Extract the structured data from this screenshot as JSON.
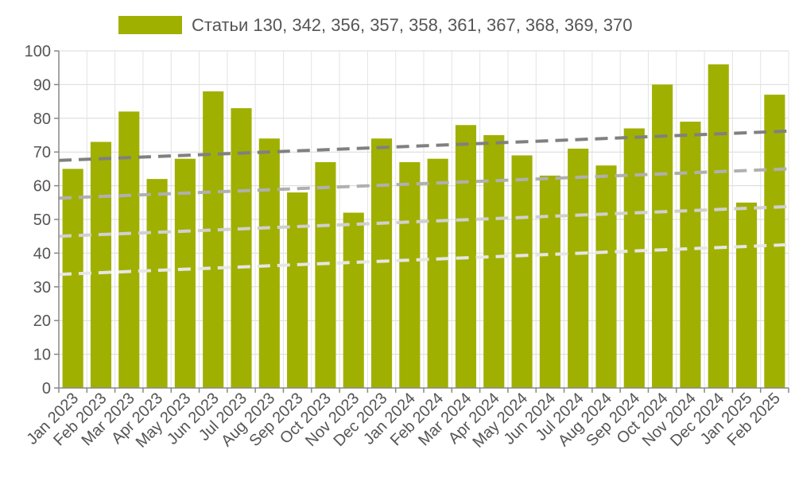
{
  "chart_data": {
    "type": "bar",
    "categories": [
      "Jan 2023",
      "Feb 2023",
      "Mar 2023",
      "Apr 2023",
      "May 2023",
      "Jun 2023",
      "Jul 2023",
      "Aug 2023",
      "Sep 2023",
      "Oct 2023",
      "Nov 2023",
      "Dec 2023",
      "Jan 2024",
      "Feb 2024",
      "Mar 2024",
      "Apr 2024",
      "May 2024",
      "Jun 2024",
      "Jul 2024",
      "Aug 2024",
      "Sep 2024",
      "Oct 2024",
      "Nov 2024",
      "Dec 2024",
      "Jan 2025",
      "Feb 2025"
    ],
    "series": [
      {
        "name": "Статьи 130, 342, 356, 357, 358, 361, 367, 368, 369, 370",
        "color": "#a0b000",
        "values": [
          65,
          73,
          82,
          62,
          68,
          88,
          83,
          74,
          58,
          67,
          52,
          74,
          67,
          68,
          78,
          75,
          69,
          63,
          71,
          66,
          77,
          90,
          79,
          96,
          55,
          87
        ]
      }
    ],
    "trend_lines": [
      {
        "start": 67.5,
        "end": 76.2,
        "color": "#808080"
      },
      {
        "start": 56.3,
        "end": 65.0,
        "color": "#b0b0b0"
      },
      {
        "start": 45.0,
        "end": 53.8,
        "color": "#d0d0d0"
      },
      {
        "start": 33.7,
        "end": 42.5,
        "color": "#e6e6e6"
      }
    ],
    "ylim": [
      0,
      100
    ],
    "yticks": [
      0,
      10,
      20,
      30,
      40,
      50,
      60,
      70,
      80,
      90,
      100
    ],
    "grid": true,
    "legend_position": "top"
  }
}
